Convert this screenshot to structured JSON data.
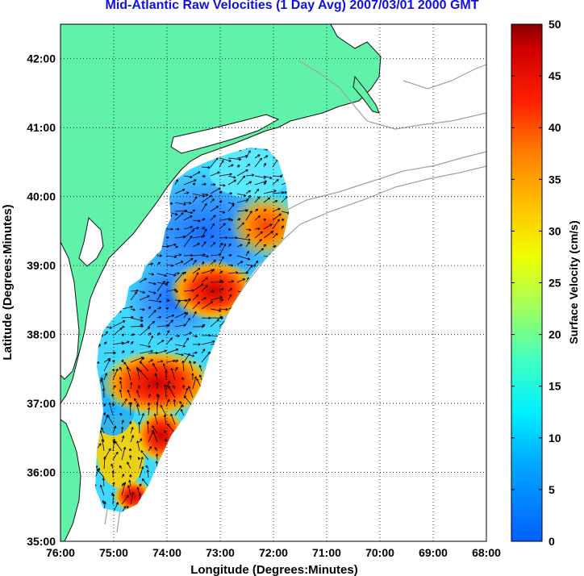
{
  "title": "Mid-Atlantic Raw Velocities (1 Day Avg) 2007/03/01 2000 GMT",
  "map": {
    "xlabel": "Longitude (Degrees:Minutes)",
    "ylabel": "Latitude (Degrees:Minutes)",
    "xticks": [
      {
        "lon": 76,
        "label": "76:00"
      },
      {
        "lon": 75,
        "label": "75:00"
      },
      {
        "lon": 74,
        "label": "74:00"
      },
      {
        "lon": 73,
        "label": "73:00"
      },
      {
        "lon": 72,
        "label": "72:00"
      },
      {
        "lon": 71,
        "label": "71:00"
      },
      {
        "lon": 70,
        "label": "70:00"
      },
      {
        "lon": 69,
        "label": "69:00"
      },
      {
        "lon": 68,
        "label": "68:00"
      }
    ],
    "yticks": [
      {
        "lat": 35,
        "label": "35:00"
      },
      {
        "lat": 36,
        "label": "36:00"
      },
      {
        "lat": 37,
        "label": "37:00"
      },
      {
        "lat": 38,
        "label": "38:00"
      },
      {
        "lat": 39,
        "label": "39:00"
      },
      {
        "lat": 40,
        "label": "40:00"
      },
      {
        "lat": 41,
        "label": "41:00"
      },
      {
        "lat": 42,
        "label": "42:00"
      }
    ],
    "lon_range": [
      -76,
      -68
    ],
    "lat_range": [
      35,
      42.5
    ],
    "grid": "dotted",
    "land_color": "#5ff2a8",
    "coast_color": "#111111",
    "bathymetry_color": "#a0a0a0"
  },
  "colorbar": {
    "label": "Surface Velocity (cm/s)",
    "min": 0,
    "max": 50,
    "ticks": [
      {
        "value": 0,
        "label": "0"
      },
      {
        "value": 5,
        "label": "5"
      },
      {
        "value": 10,
        "label": "10"
      },
      {
        "value": 15,
        "label": "15"
      },
      {
        "value": 20,
        "label": "20"
      },
      {
        "value": 25,
        "label": "25"
      },
      {
        "value": 30,
        "label": "30"
      },
      {
        "value": 35,
        "label": "35"
      },
      {
        "value": 40,
        "label": "40"
      },
      {
        "value": 45,
        "label": "45"
      },
      {
        "value": 50,
        "label": "50"
      }
    ],
    "colormap": "jet"
  },
  "chart_data": {
    "type": "heatmap",
    "units": "cm/s",
    "velocity_hotspots": [
      {
        "lon": -74.3,
        "lat": 37.2,
        "speed": 45
      },
      {
        "lon": -73.9,
        "lat": 36.7,
        "speed": 44
      },
      {
        "lon": -73.0,
        "lat": 38.6,
        "speed": 43
      },
      {
        "lon": -72.4,
        "lat": 39.5,
        "speed": 35
      },
      {
        "lon": -74.3,
        "lat": 35.6,
        "speed": 42
      }
    ],
    "velocity_lows": [
      {
        "lon": -73.6,
        "lat": 39.8,
        "speed": 4
      },
      {
        "lon": -74.3,
        "lat": 38.9,
        "speed": 5
      },
      {
        "lon": -74.5,
        "lat": 37.8,
        "speed": 8
      }
    ]
  }
}
